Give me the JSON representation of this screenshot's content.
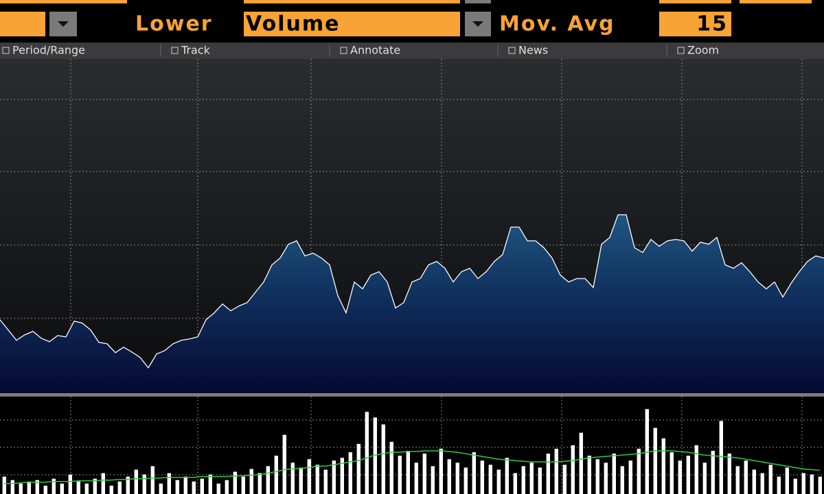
{
  "toolbar": {
    "lower_label": "Lower",
    "lower_field": "Volume",
    "mov_avg_label": "Mov. Avg",
    "mov_avg_field": 15,
    "menu": [
      "Period/Range",
      "Track",
      "Annotate",
      "News",
      "Zoom"
    ]
  },
  "chart_data": [
    {
      "type": "area",
      "color": "#ffffff",
      "ylim": [
        0,
        487
      ],
      "values": [
        107,
        92,
        77,
        85,
        90,
        80,
        75,
        84,
        82,
        105,
        102,
        92,
        74,
        72,
        59,
        67,
        60,
        52,
        37,
        57,
        62,
        72,
        77,
        79,
        82,
        107,
        117,
        130,
        120,
        127,
        132,
        147,
        162,
        187,
        197,
        217,
        222,
        200,
        204,
        197,
        187,
        142,
        117,
        162,
        152,
        172,
        177,
        162,
        124,
        132,
        162,
        167,
        187,
        192,
        182,
        162,
        177,
        182,
        167,
        177,
        192,
        202,
        242,
        242,
        222,
        222,
        212,
        197,
        172,
        162,
        167,
        167,
        154,
        217,
        227,
        260,
        260,
        212,
        205,
        224,
        214,
        222,
        224,
        222,
        207,
        220,
        217,
        227,
        187,
        182,
        190,
        177,
        162,
        152,
        162,
        140,
        160,
        177,
        192,
        200,
        197
      ]
    },
    {
      "type": "bar",
      "color": "#ffffff",
      "ylim": [
        0,
        140
      ],
      "values": [
        25,
        20,
        15,
        18,
        20,
        12,
        22,
        15,
        28,
        18,
        15,
        22,
        30,
        12,
        18,
        25,
        35,
        28,
        40,
        15,
        30,
        20,
        25,
        18,
        22,
        28,
        15,
        20,
        32,
        25,
        36,
        30,
        40,
        55,
        85,
        45,
        38,
        50,
        42,
        35,
        48,
        52,
        60,
        72,
        118,
        110,
        100,
        75,
        55,
        62,
        45,
        58,
        40,
        65,
        50,
        45,
        38,
        60,
        48,
        42,
        35,
        52,
        30,
        40,
        45,
        38,
        58,
        65,
        42,
        70,
        88,
        55,
        50,
        45,
        58,
        40,
        48,
        65,
        122,
        95,
        80,
        60,
        48,
        55,
        70,
        45,
        62,
        105,
        58,
        40,
        48,
        35,
        30,
        42,
        25,
        38,
        22,
        30,
        28,
        25
      ],
      "moving_average": {
        "color": "#2ecc40",
        "values": [
          15,
          15,
          16,
          17,
          17,
          17,
          18,
          18,
          18,
          19,
          19,
          19,
          20,
          20,
          21,
          21,
          22,
          22,
          23,
          23,
          24,
          24,
          24,
          24,
          25,
          25,
          25,
          25,
          26,
          26,
          27,
          28,
          30,
          32,
          35,
          36,
          37,
          38,
          40,
          40,
          42,
          44,
          46,
          48,
          52,
          56,
          58,
          60,
          60,
          61,
          61,
          62,
          62,
          62,
          61,
          60,
          58,
          56,
          54,
          52,
          50,
          49,
          48,
          47,
          46,
          46,
          46,
          46,
          47,
          48,
          50,
          52,
          53,
          54,
          55,
          56,
          57,
          58,
          60,
          62,
          62,
          62,
          61,
          60,
          58,
          56,
          55,
          54,
          53,
          52,
          50,
          48,
          46,
          44,
          42,
          40,
          38,
          36,
          35,
          34
        ]
      }
    }
  ]
}
